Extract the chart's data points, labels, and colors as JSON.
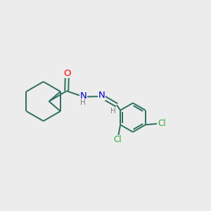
{
  "background_color": "#ececec",
  "bond_color": "#2d6e5e",
  "atom_colors": {
    "O": "#ff0000",
    "N": "#0000cc",
    "Cl": "#33aa33",
    "H": "#808080",
    "C": "#2d6e5e"
  },
  "font_size": 8.5,
  "figsize": [
    3.0,
    3.0
  ],
  "dpi": 100
}
